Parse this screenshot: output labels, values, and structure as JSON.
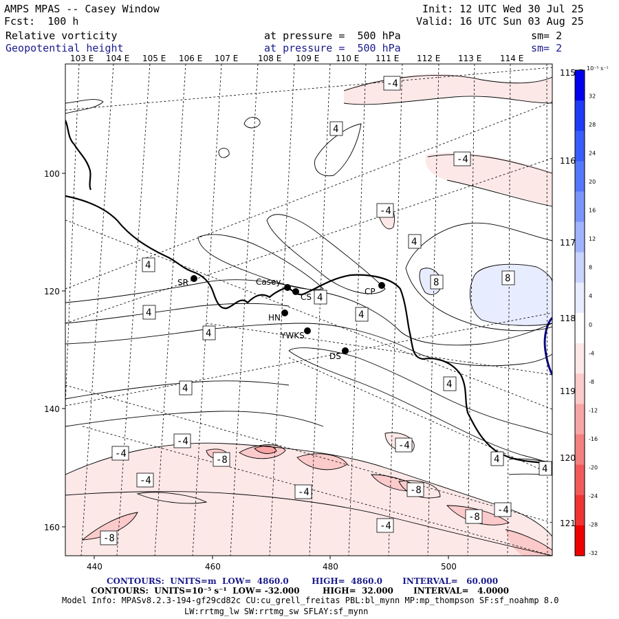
{
  "header": {
    "title": "AMPS MPAS -- Casey Window",
    "forecast": "Fcst:  100 h",
    "init": "Init: 12 UTC Wed 30 Jul 25",
    "valid": "Valid: 16 UTC Sun 03 Aug 25",
    "field1_name": "Relative vorticity",
    "field1_level": "at pressure =  500 hPa",
    "field1_sm": "sm= 2",
    "field2_name": "Geopotential height",
    "field2_level": "at pressure =  500 hPa",
    "field2_sm": "sm= 2"
  },
  "longitude_top": [
    "103 E",
    "104 E",
    "105 E",
    "106 E",
    "107 E",
    "108 E",
    "109 E",
    "110 E",
    "111 E",
    "112 E",
    "113 E",
    "114 E"
  ],
  "longitude_right": [
    "115 E",
    "116 E",
    "117 E",
    "118 E",
    "119 E",
    "120 E",
    "121 E"
  ],
  "axis_x": [
    "440",
    "460",
    "480",
    "500"
  ],
  "axis_y": [
    "100",
    "120",
    "140",
    "160"
  ],
  "stations": [
    {
      "name": "SR"
    },
    {
      "name": "Casey"
    },
    {
      "name": "CS"
    },
    {
      "name": "CP"
    },
    {
      "name": "HN"
    },
    {
      "name": "YWKS"
    },
    {
      "name": "DS"
    }
  ],
  "contour_labels": [
    "-4",
    "4",
    "-4",
    "-4",
    "4",
    "4",
    "8",
    "8",
    "4",
    "4",
    "4",
    "4",
    "4",
    "4",
    "4",
    "-4",
    "-4",
    "-8",
    "-4",
    "-4",
    "-8",
    "-4",
    "-8",
    "-4",
    "-4",
    "-8",
    "4",
    "4"
  ],
  "colorbar": {
    "unit": "10⁻⁵ s⁻¹",
    "labels": [
      "32",
      "28",
      "24",
      "20",
      "16",
      "12",
      "8",
      "4",
      "0",
      "-4",
      "-8",
      "-12",
      "-16",
      "-20",
      "-24",
      "-28",
      "-32"
    ],
    "colors": [
      "#0000ee",
      "#1f3cf5",
      "#3a5cf8",
      "#5577fa",
      "#7a94fb",
      "#a0b3fc",
      "#c8d3fe",
      "#e8ecff",
      "#ffffff",
      "#ffffff",
      "#fde8e8",
      "#fbcaca",
      "#f8a5a5",
      "#f58080",
      "#f25a5a",
      "#ef3434",
      "#ee0000"
    ]
  },
  "footer": {
    "contours1": "CONTOURS:  UNITS=m  LOW=  4860.0        HIGH=  4860.0       INTERVAL=   60.000",
    "contours2": "CONTOURS:  UNITS=10⁻⁵ s⁻¹  LOW= -32.000        HIGH=  32.000       INTERVAL=   4.0000",
    "model_info": "Model Info: MPASv8.2.3-194-gf29cd82c CU:cu_grell_freitas PBL:bl_mynn MP:mp_thompson SF:sf_noahmp 8.0",
    "model_info2": "LW:rrtmg_lw SW:rrtmg_sw SFLAY:sf_mynn"
  }
}
